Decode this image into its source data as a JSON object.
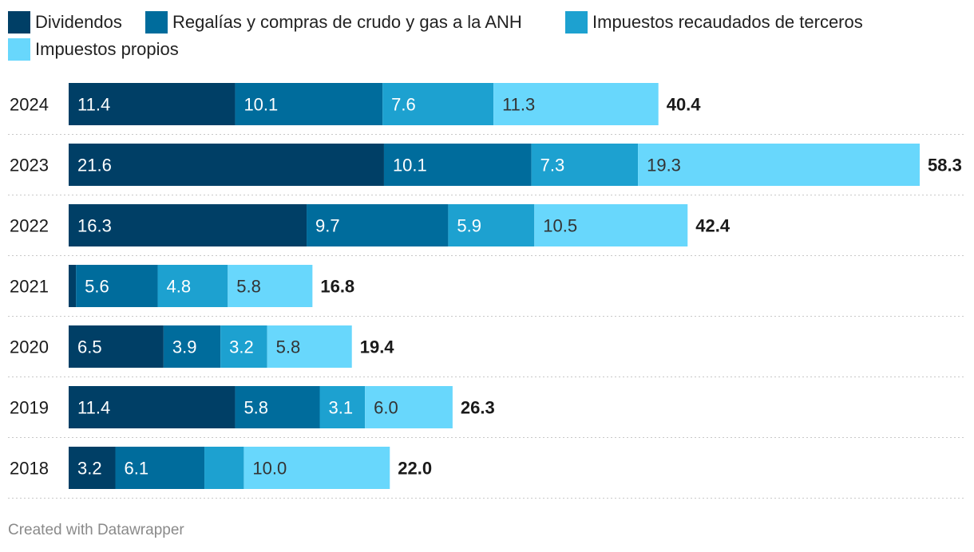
{
  "chart_data": {
    "type": "bar",
    "orientation": "horizontal",
    "stacked": true,
    "categories": [
      "2024",
      "2023",
      "2022",
      "2021",
      "2020",
      "2019",
      "2018"
    ],
    "series": [
      {
        "name": "Dividendos",
        "color": "#003f66",
        "values": [
          11.4,
          21.6,
          16.3,
          0.5,
          6.5,
          11.4,
          3.2
        ],
        "labels": [
          "11.4",
          "21.6",
          "16.3",
          "",
          "6.5",
          "11.4",
          "3.2"
        ]
      },
      {
        "name": "Regalías y compras de crudo y gas a la ANH",
        "color": "#006c9c",
        "values": [
          10.1,
          10.1,
          9.7,
          5.6,
          3.9,
          5.8,
          6.1
        ],
        "labels": [
          "10.1",
          "10.1",
          "9.7",
          "5.6",
          "3.9",
          "5.8",
          "6.1"
        ]
      },
      {
        "name": "Impuestos recaudados de terceros",
        "color": "#1da1d0",
        "values": [
          7.6,
          7.3,
          5.9,
          4.8,
          3.2,
          3.1,
          2.7
        ],
        "labels": [
          "7.6",
          "7.3",
          "5.9",
          "4.8",
          "3.2",
          "3.1",
          ""
        ]
      },
      {
        "name": "Impuestos propios",
        "color": "#68d7fc",
        "values": [
          11.3,
          19.3,
          10.5,
          5.8,
          5.8,
          6.0,
          10.0
        ],
        "labels": [
          "11.3",
          "19.3",
          "10.5",
          "5.8",
          "5.8",
          "6.0",
          "10.0"
        ]
      }
    ],
    "totals": [
      "40.4",
      "58.3",
      "42.4",
      "16.8",
      "19.4",
      "26.3",
      "22.0"
    ],
    "xlim": [
      0,
      58.3
    ],
    "grid": "dotted row separators",
    "legend": "top-left"
  },
  "footer": {
    "credit": "Created with Datawrapper"
  }
}
